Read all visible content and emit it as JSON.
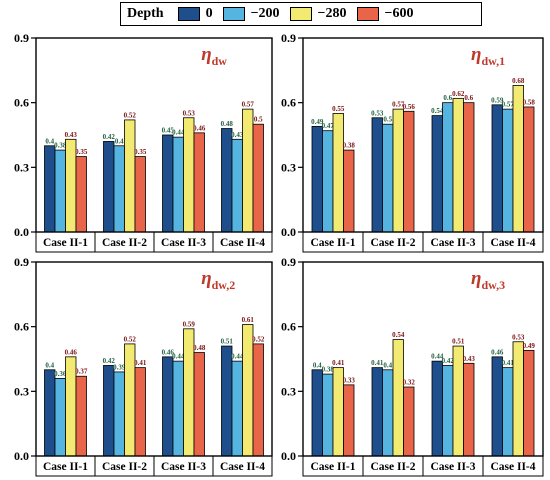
{
  "legend": {
    "title": "Depth",
    "entries": [
      {
        "label": "0",
        "color": "#1f4e8c"
      },
      {
        "label": "−200",
        "color": "#56b4e0"
      },
      {
        "label": "−280",
        "color": "#f3ea71"
      },
      {
        "label": "−600",
        "color": "#e8654a"
      }
    ]
  },
  "chart_data": [
    {
      "type": "bar",
      "title": "η",
      "title_sub": "dw",
      "categories": [
        "Case II-1",
        "Case II-2",
        "Case II-3",
        "Case II-4"
      ],
      "ylim": [
        0,
        0.9
      ],
      "yticks": [
        "0.0",
        "0.3",
        "0.6",
        "0.9"
      ],
      "grid": false,
      "series": [
        {
          "name": "0",
          "values": [
            0.4,
            0.42,
            0.45,
            0.48
          ],
          "labels": [
            "0.4",
            "0.42",
            "0.45",
            "0.48"
          ]
        },
        {
          "name": "−200",
          "values": [
            0.38,
            0.4,
            0.44,
            0.43
          ],
          "labels": [
            "0.38",
            "0.4",
            "0.44",
            "0.43"
          ]
        },
        {
          "name": "−280",
          "values": [
            0.43,
            0.52,
            0.53,
            0.57
          ],
          "labels": [
            "0.43",
            "0.52",
            "0.53",
            "0.57"
          ]
        },
        {
          "name": "−600",
          "values": [
            0.35,
            0.35,
            0.46,
            0.5
          ],
          "labels": [
            "0.35",
            "0.35",
            "0.46",
            "0.5"
          ]
        }
      ]
    },
    {
      "type": "bar",
      "title": "η",
      "title_sub": "dw,1",
      "categories": [
        "Case II-1",
        "Case II-2",
        "Case II-3",
        "Case II-4"
      ],
      "ylim": [
        0,
        0.9
      ],
      "yticks": [
        "0.0",
        "0.3",
        "0.6",
        "0.9"
      ],
      "grid": false,
      "series": [
        {
          "name": "0",
          "values": [
            0.49,
            0.53,
            0.54,
            0.59
          ],
          "labels": [
            "0.49",
            "0.53",
            "0.54",
            "0.59"
          ]
        },
        {
          "name": "−200",
          "values": [
            0.47,
            0.5,
            0.6,
            0.57
          ],
          "labels": [
            "0.47",
            "0.5",
            "0.6",
            "0.57"
          ]
        },
        {
          "name": "−280",
          "values": [
            0.55,
            0.57,
            0.62,
            0.68
          ],
          "labels": [
            "0.55",
            "0.57",
            "0.62",
            "0.68"
          ]
        },
        {
          "name": "−600",
          "values": [
            0.38,
            0.56,
            0.6,
            0.58
          ],
          "labels": [
            "0.38",
            "0.56",
            "0.6",
            "0.58"
          ]
        }
      ]
    },
    {
      "type": "bar",
      "title": "η",
      "title_sub": "dw,2",
      "categories": [
        "Case II-1",
        "Case II-2",
        "Case II-3",
        "Case II-4"
      ],
      "ylim": [
        0,
        0.9
      ],
      "yticks": [
        "0.0",
        "0.3",
        "0.6",
        "0.9"
      ],
      "grid": false,
      "series": [
        {
          "name": "0",
          "values": [
            0.4,
            0.42,
            0.46,
            0.51
          ],
          "labels": [
            "0.4",
            "0.42",
            "0.46",
            "0.51"
          ]
        },
        {
          "name": "−200",
          "values": [
            0.36,
            0.39,
            0.44,
            0.44
          ],
          "labels": [
            "0.36",
            "0.39",
            "0.44",
            "0.44"
          ]
        },
        {
          "name": "−280",
          "values": [
            0.46,
            0.52,
            0.59,
            0.61
          ],
          "labels": [
            "0.46",
            "0.52",
            "0.59",
            "0.61"
          ]
        },
        {
          "name": "−600",
          "values": [
            0.37,
            0.41,
            0.48,
            0.52
          ],
          "labels": [
            "0.37",
            "0.41",
            "0.48",
            "0.52"
          ]
        }
      ]
    },
    {
      "type": "bar",
      "title": "η",
      "title_sub": "dw,3",
      "categories": [
        "Case II-1",
        "Case II-2",
        "Case II-3",
        "Case II-4"
      ],
      "ylim": [
        0,
        0.9
      ],
      "yticks": [
        "0.0",
        "0.3",
        "0.6",
        "0.9"
      ],
      "grid": false,
      "series": [
        {
          "name": "0",
          "values": [
            0.4,
            0.41,
            0.44,
            0.46
          ],
          "labels": [
            "0.4",
            "0.41",
            "0.44",
            "0.46"
          ]
        },
        {
          "name": "−200",
          "values": [
            0.38,
            0.4,
            0.42,
            0.41
          ],
          "labels": [
            "0.38",
            "0.4",
            "0.42",
            "0.41"
          ]
        },
        {
          "name": "−280",
          "values": [
            0.41,
            0.54,
            0.51,
            0.53
          ],
          "labels": [
            "0.41",
            "0.54",
            "0.51",
            "0.53"
          ]
        },
        {
          "name": "−600",
          "values": [
            0.33,
            0.32,
            0.43,
            0.49
          ],
          "labels": [
            "0.33",
            "0.32",
            "0.43",
            "0.49"
          ]
        }
      ]
    }
  ]
}
